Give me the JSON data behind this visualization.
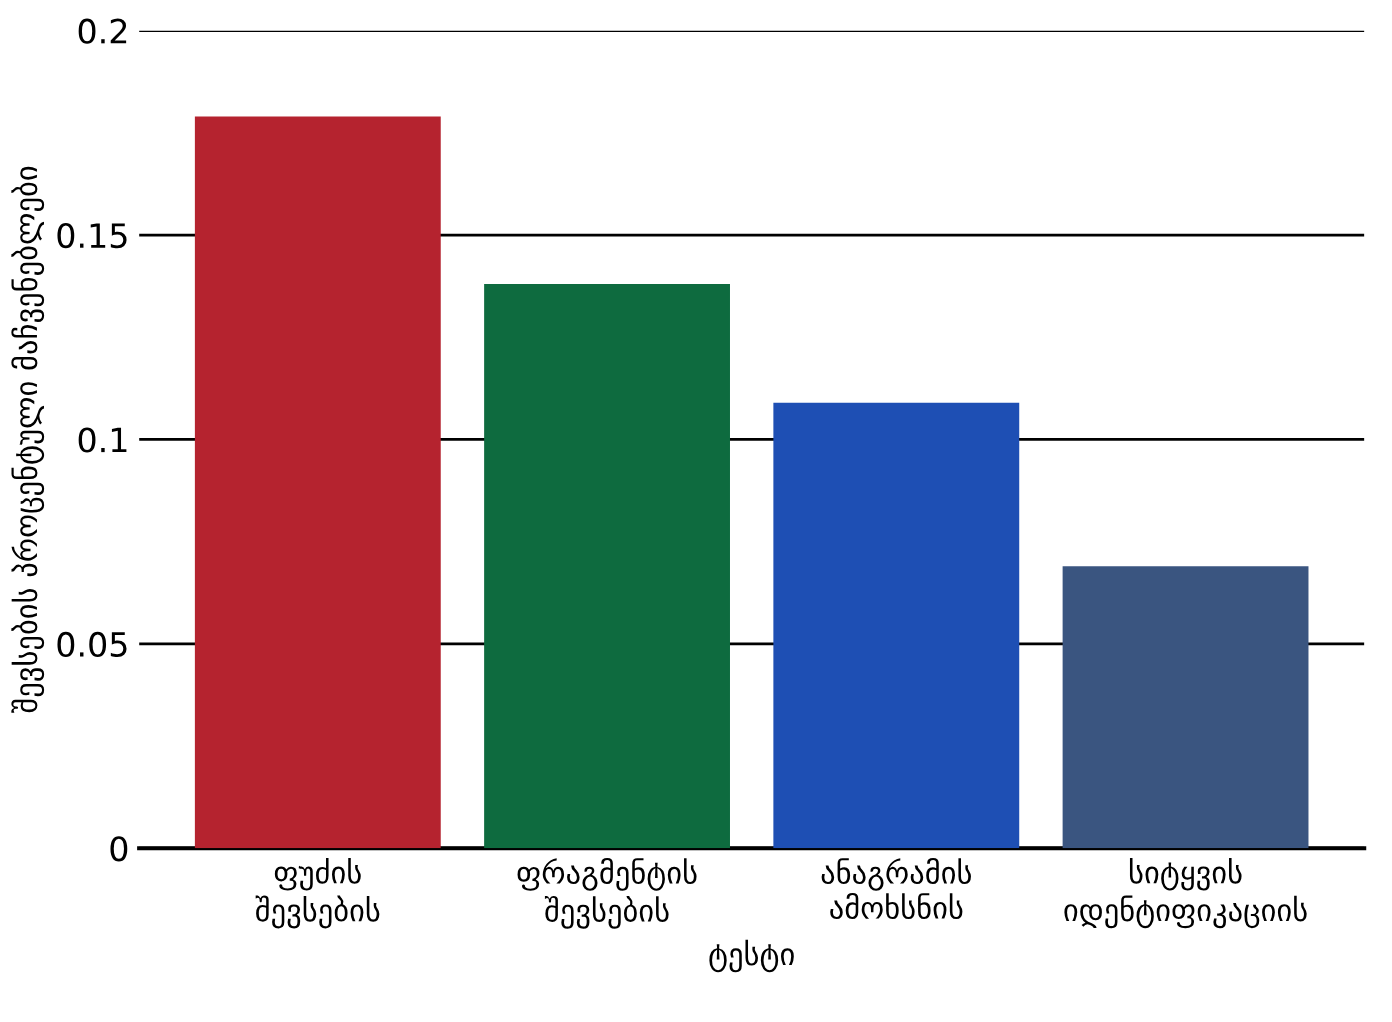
{
  "chart_data": {
    "type": "bar",
    "xlabel": "ტესტი",
    "ylabel": "შევსების პროცენტული მაჩვენებლები",
    "categories": [
      "ფუძის\nშევსების",
      "ფრაგმენტის\nშევსების",
      "ანაგრამის\nამოხსნის",
      "სიტყვის\nიდენტიფიკაციის"
    ],
    "values": [
      0.179,
      0.138,
      0.109,
      0.069
    ],
    "colors": [
      "#b5232f",
      "#0e6b3f",
      "#1e4fb4",
      "#3a5580"
    ],
    "ylim": [
      0,
      0.2
    ],
    "yticks": [
      0,
      0.05,
      0.1,
      0.15,
      0.2
    ],
    "grid": "y"
  }
}
